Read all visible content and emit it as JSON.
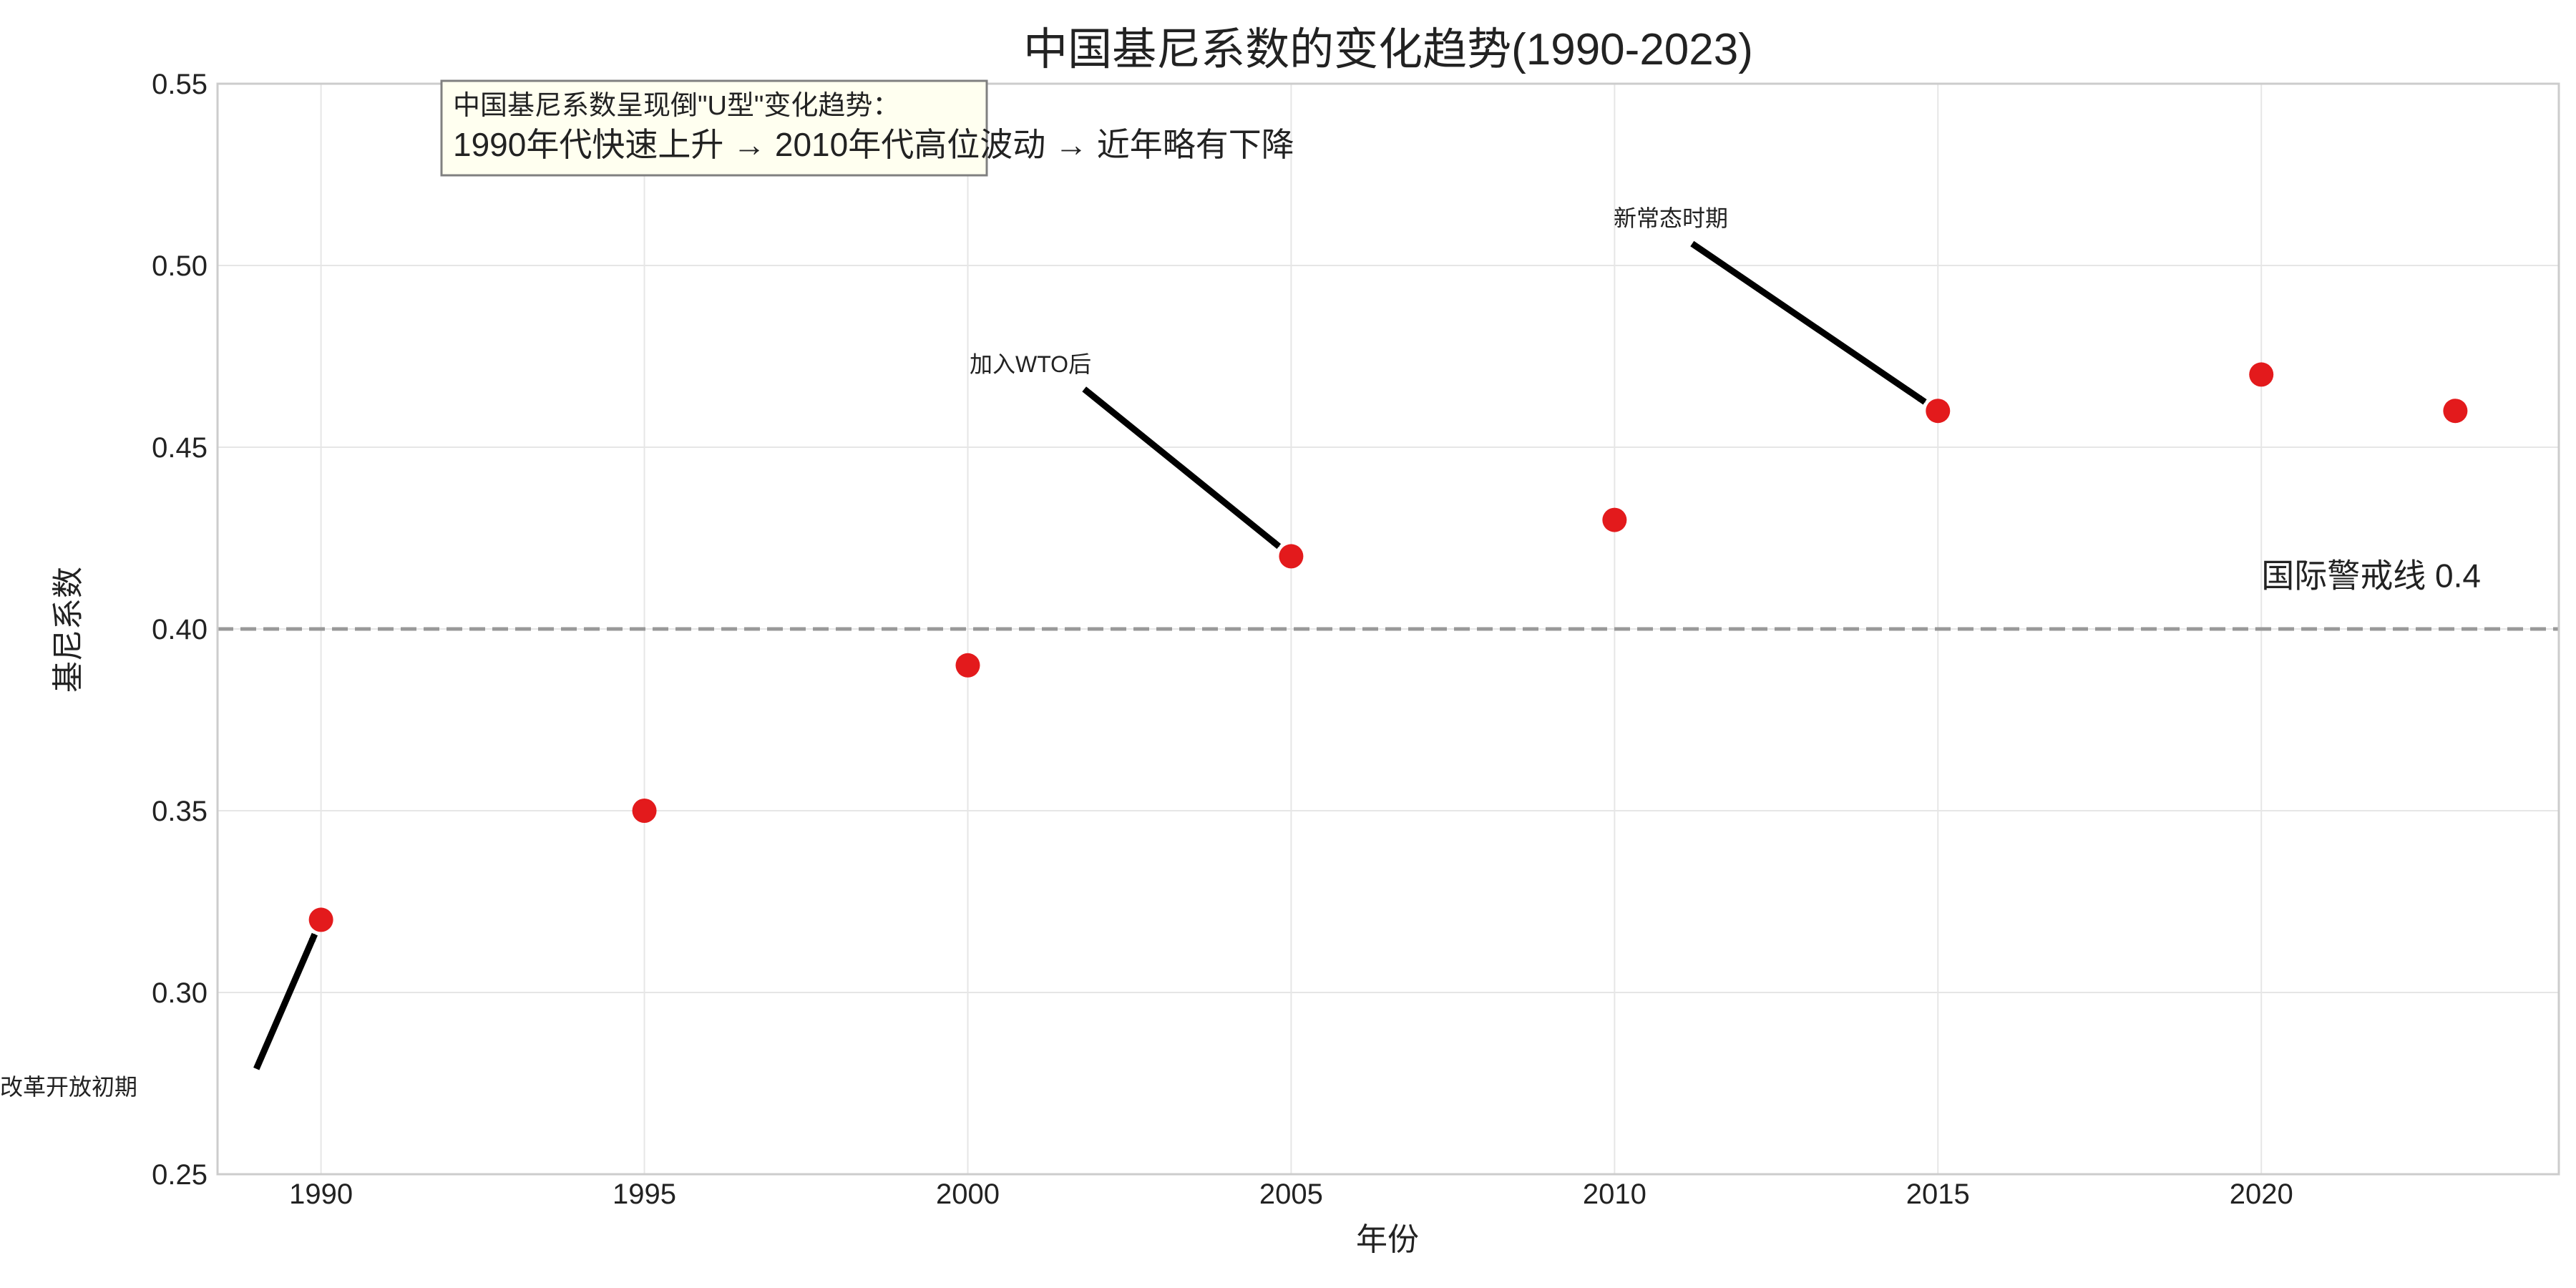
{
  "chart_data": {
    "type": "scatter",
    "title": "中国基尼系数的变化趋势(1990-2023)",
    "xlabel": "年份",
    "ylabel": "基尼系数",
    "xlim": [
      1988.4,
      2024.6
    ],
    "ylim": [
      0.25,
      0.55
    ],
    "xticks": [
      1990,
      1995,
      2000,
      2005,
      2010,
      2015,
      2020
    ],
    "yticks": [
      0.25,
      0.3,
      0.35,
      0.4,
      0.45,
      0.5,
      0.55
    ],
    "grid": true,
    "series": [
      {
        "name": "基尼系数",
        "color": "#e31a1c",
        "x": [
          1990,
          1995,
          2000,
          2005,
          2010,
          2015,
          2020,
          2023
        ],
        "y": [
          0.32,
          0.35,
          0.39,
          0.42,
          0.43,
          0.46,
          0.47,
          0.46
        ]
      }
    ],
    "reference_line": {
      "y": 0.4,
      "label": "国际警戒线 0.4",
      "color": "#999999",
      "style": "dashed"
    },
    "annotations": [
      {
        "text": "改革开放初期",
        "target": [
          1990,
          0.32
        ],
        "text_pos": [
          1989.0,
          0.279
        ]
      },
      {
        "text": "加入WTO后",
        "target": [
          2005,
          0.42
        ],
        "text_pos": [
          2001.8,
          0.466
        ]
      },
      {
        "text": "新常态时期",
        "target": [
          2015,
          0.46
        ],
        "text_pos": [
          2011.2,
          0.506
        ]
      }
    ],
    "note": {
      "line1": "中国基尼系数呈现倒\"U型\"变化趋势：",
      "line2": "1990年代快速上升 → 2010年代高位波动 → 近年略有下降"
    }
  },
  "colors": {
    "marker": "#e31a1c",
    "grid": "#e6e6e6",
    "frame": "#cccccc",
    "reference": "#999999",
    "note_bg": "#fffff0",
    "note_border": "#808080",
    "arrow": "#000000"
  }
}
